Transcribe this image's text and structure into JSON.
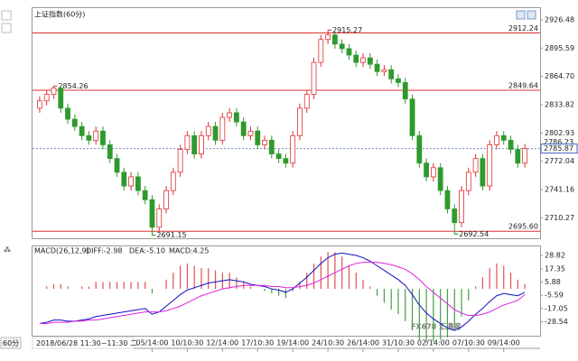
{
  "chart_data": [
    {
      "type": "candlestick",
      "title": "上证指数",
      "subtitle": "(60分)",
      "categories": [
        null,
        null,
        null,
        null,
        null,
        null,
        null,
        null,
        null,
        null,
        null,
        null,
        null,
        null,
        null,
        null,
        "05/14:00",
        null,
        null,
        null,
        null,
        "10/10:30",
        null,
        null,
        null,
        null,
        "12/14:00",
        null,
        null,
        null,
        null,
        "17/10:30",
        null,
        null,
        null,
        null,
        "19/14:00",
        null,
        null,
        null,
        null,
        "24/10:30",
        null,
        null,
        null,
        null,
        "26/14:00",
        null,
        null,
        null,
        null,
        "31/10:30",
        null,
        null,
        null,
        null,
        "02/14:00",
        null,
        null,
        null,
        null,
        "07/10:30",
        null,
        null,
        null,
        null,
        "09/14:00",
        null,
        null,
        null
      ],
      "open": [
        2830,
        2838,
        2845,
        2852,
        2830,
        2818,
        2810,
        2800,
        2795,
        2805,
        2790,
        2775,
        2760,
        2745,
        2755,
        2740,
        2730,
        2700,
        2720,
        2740,
        2760,
        2785,
        2800,
        2780,
        2800,
        2810,
        2795,
        2820,
        2825,
        2815,
        2800,
        2805,
        2790,
        2795,
        2780,
        2775,
        2770,
        2800,
        2830,
        2845,
        2880,
        2905,
        2910,
        2900,
        2895,
        2888,
        2880,
        2885,
        2878,
        2870,
        2872,
        2862,
        2858,
        2840,
        2800,
        2770,
        2755,
        2765,
        2740,
        2720,
        2705,
        2740,
        2760,
        2775,
        2745,
        2790,
        2800,
        2795,
        2785,
        2770
      ],
      "high": [
        2843,
        2850,
        2854.26,
        2853,
        2835,
        2823,
        2815,
        2805,
        2810,
        2810,
        2795,
        2780,
        2765,
        2760,
        2760,
        2745,
        2735,
        2725,
        2745,
        2765,
        2790,
        2805,
        2805,
        2805,
        2815,
        2815,
        2825,
        2830,
        2830,
        2820,
        2810,
        2810,
        2800,
        2800,
        2785,
        2780,
        2805,
        2835,
        2850,
        2885,
        2910,
        2915.27,
        2913,
        2905,
        2900,
        2893,
        2890,
        2890,
        2883,
        2877,
        2877,
        2867,
        2863,
        2845,
        2805,
        2775,
        2770,
        2770,
        2745,
        2725,
        2745,
        2765,
        2780,
        2780,
        2795,
        2805,
        2805,
        2800,
        2790,
        2791
      ],
      "low": [
        2825,
        2833,
        2840,
        2825,
        2813,
        2805,
        2795,
        2790,
        2790,
        2785,
        2770,
        2755,
        2740,
        2740,
        2735,
        2725,
        2691.15,
        2695,
        2715,
        2735,
        2755,
        2780,
        2775,
        2775,
        2795,
        2790,
        2790,
        2815,
        2810,
        2795,
        2795,
        2785,
        2785,
        2775,
        2770,
        2765,
        2765,
        2795,
        2825,
        2840,
        2875,
        2900,
        2895,
        2890,
        2883,
        2875,
        2875,
        2873,
        2865,
        2865,
        2857,
        2853,
        2835,
        2795,
        2765,
        2750,
        2750,
        2735,
        2715,
        2692.54,
        2700,
        2735,
        2755,
        2740,
        2740,
        2785,
        2790,
        2780,
        2765,
        2765
      ],
      "close": [
        2838,
        2845,
        2852,
        2830,
        2818,
        2810,
        2800,
        2795,
        2805,
        2790,
        2775,
        2760,
        2745,
        2755,
        2740,
        2730,
        2700,
        2720,
        2740,
        2760,
        2785,
        2800,
        2780,
        2800,
        2810,
        2795,
        2820,
        2825,
        2815,
        2800,
        2805,
        2790,
        2795,
        2780,
        2775,
        2770,
        2800,
        2830,
        2845,
        2880,
        2905,
        2910,
        2900,
        2895,
        2888,
        2880,
        2885,
        2878,
        2870,
        2872,
        2862,
        2858,
        2840,
        2800,
        2770,
        2755,
        2765,
        2740,
        2720,
        2705,
        2740,
        2760,
        2775,
        2745,
        2790,
        2800,
        2795,
        2785,
        2770,
        2786
      ],
      "high_labels": [
        null,
        null,
        "2854.26",
        null,
        null,
        null,
        null,
        null,
        null,
        null,
        null,
        null,
        null,
        null,
        null,
        null,
        null,
        null,
        null,
        null,
        null,
        null,
        null,
        null,
        null,
        null,
        null,
        null,
        null,
        null,
        null,
        null,
        null,
        null,
        null,
        null,
        null,
        null,
        null,
        null,
        null,
        "2915.27",
        null,
        null,
        null,
        null,
        null,
        null,
        null,
        null,
        null,
        null,
        null,
        null,
        null,
        null,
        null,
        null,
        null,
        null,
        null,
        null,
        null,
        null,
        null,
        null,
        null,
        null,
        null,
        null
      ],
      "low_labels": [
        null,
        null,
        null,
        null,
        null,
        null,
        null,
        null,
        null,
        null,
        null,
        null,
        null,
        null,
        null,
        null,
        "2691.15",
        null,
        null,
        null,
        null,
        null,
        null,
        null,
        null,
        null,
        null,
        null,
        null,
        null,
        null,
        null,
        null,
        null,
        null,
        null,
        null,
        null,
        null,
        null,
        null,
        null,
        null,
        null,
        null,
        null,
        null,
        null,
        null,
        null,
        null,
        null,
        null,
        null,
        null,
        null,
        null,
        null,
        null,
        "2692.54",
        null,
        null,
        null,
        null,
        null,
        null,
        null,
        null,
        null,
        null
      ],
      "up_color": "#e03030",
      "down_color": "#2e9a2e",
      "ylim": [
        2689.9,
        2938.3
      ],
      "yticks": [
        2926.48,
        2895.59,
        {
          "value": 2864.7,
          "label": "2864.70"
        },
        2833.82,
        2802.93,
        2772.04,
        2741.16,
        2710.27
      ],
      "hlines": [
        {
          "value": 2912.24
        },
        {
          "value": 2849.64
        },
        {
          "value": 2695.6,
          "label": "2695.60"
        }
      ],
      "hline_color": "#e03030",
      "marker_price": 2786.23,
      "last_price": 2785.87,
      "footer": {
        "date": "2018/06/28 11:30~11:30 二",
        "period": "60分"
      },
      "watermark": "FX678 汇通网"
    },
    {
      "type": "macd",
      "title": "MACD(26,12,9)",
      "series": [
        {
          "label": "DIFF:-2.98",
          "color": "#1010c0",
          "values": [
            -30,
            -29,
            -27,
            -27,
            -28,
            -28,
            -27,
            -26,
            -24,
            -23,
            -22,
            -21,
            -20,
            -19,
            -18,
            -17,
            -22,
            -20,
            -15,
            -10,
            -5,
            -1,
            1,
            3,
            5,
            6,
            7,
            8,
            7,
            6,
            4,
            3,
            2,
            0,
            -1,
            -3,
            0,
            5,
            10,
            16,
            22,
            27,
            30,
            31,
            30,
            29,
            27,
            24,
            20,
            16,
            12,
            8,
            3,
            -5,
            -14,
            -21,
            -26,
            -30,
            -34,
            -36,
            -33,
            -28,
            -22,
            -17,
            -11,
            -6,
            -4,
            -5,
            -6,
            -3
          ]
        },
        {
          "label": "DEA:-5.10",
          "color": "#e020e0",
          "values": [
            -30,
            -30,
            -29,
            -29,
            -29,
            -28,
            -28,
            -27,
            -27,
            -26,
            -25,
            -24,
            -23,
            -22,
            -21,
            -20,
            -20,
            -20,
            -19,
            -17,
            -15,
            -12,
            -9,
            -6,
            -4,
            -2,
            0,
            1,
            2,
            3,
            3,
            3,
            3,
            2,
            2,
            1,
            1,
            2,
            3,
            5,
            8,
            11,
            14,
            17,
            20,
            22,
            23,
            23,
            23,
            22,
            21,
            19,
            17,
            13,
            8,
            2,
            -3,
            -8,
            -13,
            -18,
            -21,
            -23,
            -23,
            -22,
            -20,
            -17,
            -14,
            -12,
            -10,
            -5
          ]
        }
      ],
      "histogram": {
        "label": "MACD:4.25",
        "label_color": "#e09020",
        "up_color": "#e05050",
        "down_color": "#40a040",
        "values": [
          0,
          2,
          4,
          4,
          2,
          0,
          2,
          2,
          6,
          6,
          6,
          6,
          6,
          6,
          6,
          6,
          -4,
          0,
          8,
          14,
          20,
          22,
          20,
          18,
          18,
          16,
          14,
          14,
          10,
          6,
          2,
          0,
          -2,
          -4,
          -6,
          -8,
          -2,
          6,
          14,
          22,
          28,
          32,
          32,
          28,
          20,
          14,
          8,
          2,
          -6,
          -12,
          -18,
          -22,
          -28,
          -36,
          -44,
          -46,
          -46,
          -44,
          -42,
          -36,
          -24,
          -10,
          2,
          10,
          18,
          22,
          20,
          14,
          8,
          4.25
        ]
      },
      "ylim": [
        -40.6,
        36.8
      ],
      "yticks": [
        28.82,
        17.35,
        5.88,
        -5.59,
        -17.05,
        -28.54
      ]
    }
  ]
}
